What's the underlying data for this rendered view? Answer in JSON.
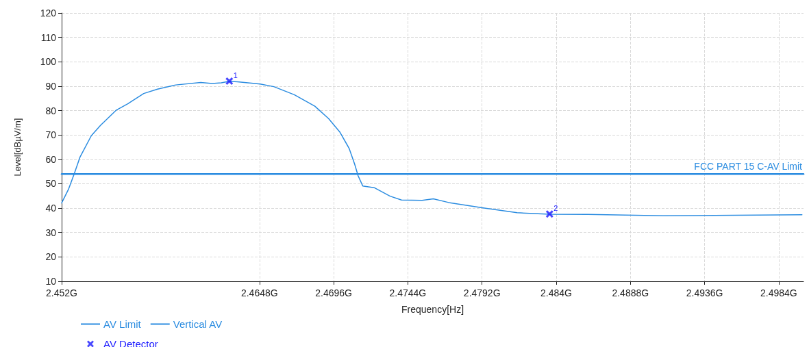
{
  "chart_data": {
    "type": "line",
    "xlabel": "Frequency[Hz]",
    "ylabel": "Level[dBµV/m]",
    "xlim": [
      2.452,
      2.5
    ],
    "xticks": [
      {
        "value": 2.452,
        "label": "2.452G"
      },
      {
        "value": 2.4648,
        "label": "2.4648G"
      },
      {
        "value": 2.4696,
        "label": "2.4696G"
      },
      {
        "value": 2.4744,
        "label": "2.4744G"
      },
      {
        "value": 2.4792,
        "label": "2.4792G"
      },
      {
        "value": 2.484,
        "label": "2.484G"
      },
      {
        "value": 2.4888,
        "label": "2.4888G"
      },
      {
        "value": 2.4936,
        "label": "2.4936G"
      },
      {
        "value": 2.4984,
        "label": "2.4984G"
      }
    ],
    "ylim": [
      10,
      120
    ],
    "yticks": [
      10,
      20,
      30,
      40,
      50,
      60,
      70,
      80,
      90,
      100,
      110,
      120
    ],
    "grid": true,
    "legend": "bottom left",
    "series": [
      {
        "name": "AV Limit",
        "type": "line",
        "color": "#2b8ce0",
        "x": [
          2.452,
          2.5
        ],
        "values": [
          54,
          54
        ]
      },
      {
        "name": "Vertical AV",
        "color": "#2b8ce0",
        "x": [
          2.452,
          2.45244,
          2.45281,
          2.45318,
          2.45392,
          2.45451,
          2.45554,
          2.45628,
          2.45731,
          2.4582,
          2.45938,
          2.461,
          2.46174,
          2.46233,
          2.46285,
          2.46337,
          2.46484,
          2.46573,
          2.46705,
          2.46838,
          2.46927,
          2.47001,
          2.4706,
          2.47096,
          2.47118,
          2.47148,
          2.47222,
          2.47325,
          2.47399,
          2.47532,
          2.47605,
          2.47704,
          2.47934,
          2.48147,
          2.48357,
          2.48605,
          2.4909,
          2.49424,
          2.4999
        ],
        "values": [
          42.1,
          47.7,
          54.0,
          60.8,
          69.7,
          73.9,
          80.2,
          82.8,
          87.0,
          88.8,
          90.5,
          91.5,
          91.1,
          91.4,
          92.0,
          91.8,
          90.9,
          89.8,
          86.5,
          81.8,
          76.7,
          71.1,
          64.5,
          58.0,
          53.3,
          49.1,
          48.4,
          44.9,
          43.3,
          43.2,
          43.8,
          42.3,
          40.0,
          38.1,
          37.5,
          37.4,
          36.9,
          37.0,
          37.3
        ]
      },
      {
        "name": "AV Detector",
        "type": "scatter",
        "color": "#1a1aff",
        "marker": "cross",
        "x": [
          2.46285,
          2.48357
        ],
        "values": [
          92.1,
          37.6
        ]
      }
    ],
    "annotations": [
      {
        "text": "FCC PART 15 C-AV Limit",
        "x": 2.5,
        "y": 54
      },
      {
        "text": "1",
        "x": 2.46285,
        "y": 92.1
      },
      {
        "text": "2",
        "x": 2.48357,
        "y": 37.6
      }
    ]
  }
}
